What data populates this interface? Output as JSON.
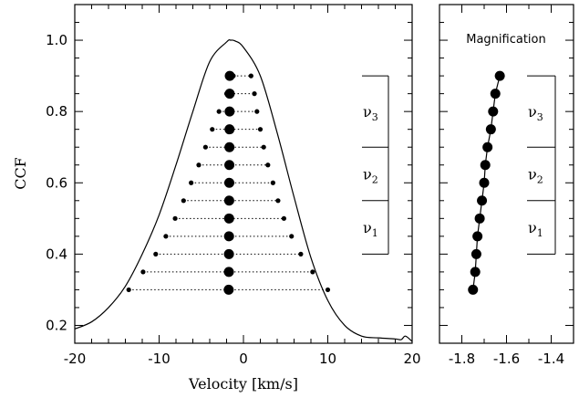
{
  "chart_data": [
    {
      "type": "line",
      "ylabel": "CCF",
      "xlabel": "Velocity [km/s]",
      "xlim": [
        -20,
        20
      ],
      "ylim": [
        0.15,
        1.1
      ],
      "xticks": [
        -20,
        -10,
        0,
        10,
        20
      ],
      "xtick_labels": [
        "-20",
        "-10",
        "0",
        "10",
        "20"
      ],
      "yticks": [
        0.2,
        0.4,
        0.6,
        0.8,
        1.0
      ],
      "ytick_labels": [
        "0.2",
        "0.4",
        "0.6",
        "0.8",
        "1.0"
      ],
      "ccf_profile": {
        "x": [
          -20,
          -18,
          -16,
          -14,
          -12,
          -10,
          -8,
          -6,
          -4,
          -2,
          -1.5,
          -1,
          0,
          2,
          4,
          6,
          8,
          10,
          12,
          14,
          16,
          18,
          18.7,
          19.2,
          20
        ],
        "y": [
          0.19,
          0.21,
          0.25,
          0.31,
          0.4,
          0.51,
          0.65,
          0.8,
          0.94,
          0.995,
          1.0,
          0.998,
          0.98,
          0.9,
          0.74,
          0.56,
          0.39,
          0.27,
          0.2,
          0.17,
          0.165,
          0.162,
          0.16,
          0.17,
          0.155
        ]
      },
      "bisector_levels": [
        0.3,
        0.35,
        0.4,
        0.45,
        0.5,
        0.55,
        0.6,
        0.65,
        0.7,
        0.75,
        0.8,
        0.85,
        0.9
      ],
      "left_wing_x": [
        -13.6,
        -11.9,
        -10.4,
        -9.2,
        -8.1,
        -7.1,
        -6.2,
        -5.3,
        -4.5,
        -3.7,
        -2.9,
        -2.0,
        -1.2
      ],
      "right_wing_x": [
        10.0,
        8.2,
        6.8,
        5.7,
        4.8,
        4.1,
        3.5,
        2.9,
        2.4,
        2.0,
        1.6,
        1.3,
        0.9
      ],
      "bisector_x": [
        -1.75,
        -1.73,
        -1.72,
        -1.71,
        -1.7,
        -1.69,
        -1.68,
        -1.67,
        -1.66,
        -1.65,
        -1.64,
        -1.63,
        -1.62
      ],
      "regions": [
        {
          "name": "ν",
          "sub": "1",
          "range": [
            0.4,
            0.55
          ]
        },
        {
          "name": "ν",
          "sub": "2",
          "range": [
            0.55,
            0.7
          ]
        },
        {
          "name": "ν",
          "sub": "3",
          "range": [
            0.7,
            0.9
          ]
        }
      ]
    },
    {
      "type": "scatter",
      "title": "Magnification",
      "xlim": [
        -1.9,
        -1.3
      ],
      "ylim": [
        0.15,
        1.1
      ],
      "xticks": [
        -1.8,
        -1.6,
        -1.4
      ],
      "xtick_labels": [
        "-1.8",
        "-1.6",
        "-1.4"
      ],
      "x": [
        -1.75,
        -1.74,
        -1.735,
        -1.73,
        -1.72,
        -1.71,
        -1.7,
        -1.695,
        -1.685,
        -1.67,
        -1.66,
        -1.65,
        -1.63
      ],
      "y": [
        0.3,
        0.35,
        0.4,
        0.45,
        0.5,
        0.55,
        0.6,
        0.65,
        0.7,
        0.75,
        0.8,
        0.85,
        0.9
      ]
    }
  ]
}
